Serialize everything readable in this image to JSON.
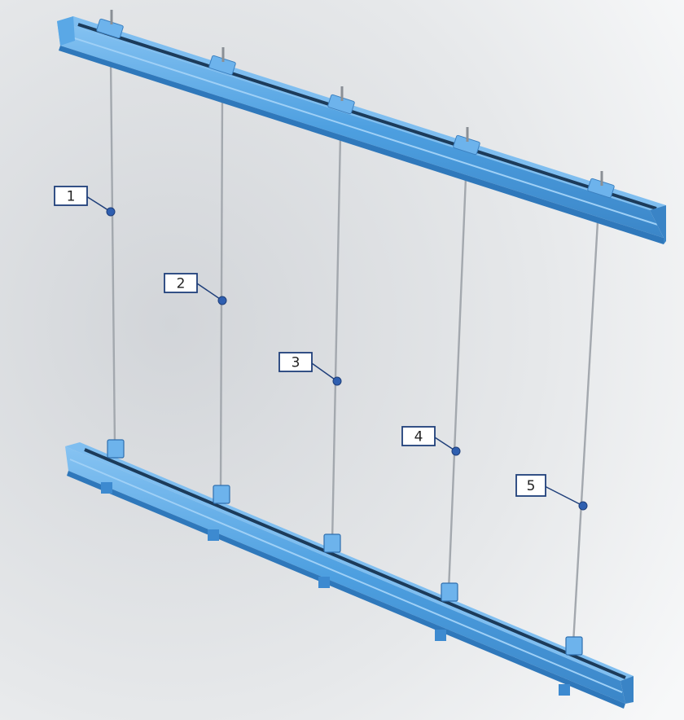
{
  "figure": {
    "callouts": [
      {
        "number": "1"
      },
      {
        "number": "2"
      },
      {
        "number": "3"
      },
      {
        "number": "4"
      },
      {
        "number": "5"
      }
    ]
  },
  "colors": {
    "beam": "#4a9fe0",
    "beam_light": "#7dbcf0",
    "beam_dark": "#2f6fae",
    "slot": "#1e3a55",
    "cable": "#a8adb3",
    "callout_stroke": "#1f3f7a",
    "callout_dot": "#2f5fb0"
  }
}
